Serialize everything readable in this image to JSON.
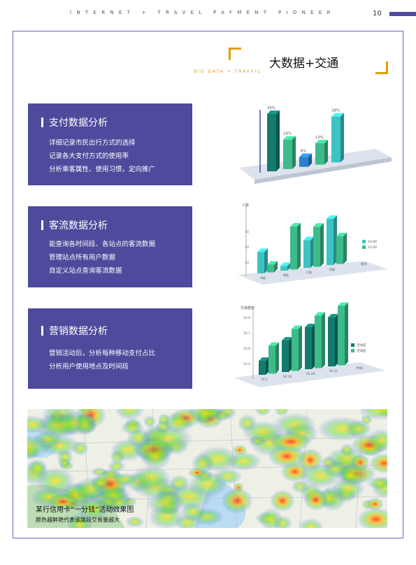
{
  "header": {
    "tagline": "INTERNET + TRAVEL PAYMENT PIONEER",
    "page_number": "10"
  },
  "section": {
    "title": "大数据+交通",
    "subtitle": "BIG DATA + TRAFFIC"
  },
  "colors": {
    "panel": "#4e4a9c",
    "accent": "#e0a100",
    "bar_dark": "#137a6e",
    "bar_green": "#3dbb8a",
    "bar_teal": "#3cc4c4",
    "bar_blue": "#2a7fcf"
  },
  "panels": [
    {
      "title": "支付数据分析",
      "lines": [
        "详细记录市民出行方式的选择",
        "记录各大支付方式的使用率",
        "分析乘客属性、使用习惯，定向推广"
      ]
    },
    {
      "title": "客流数据分析",
      "lines": [
        "能查询各时间段、各站点的客流数据",
        "管理站点所有用户数据",
        "自定义站点查询客流数据"
      ]
    },
    {
      "title": "营销数据分析",
      "lines": [
        "营销活动后，分析每种移动支付占比",
        "分析用户使用地点及时间段"
      ]
    }
  ],
  "chart_data": [
    {
      "type": "bar",
      "categories": [
        "",
        "",
        "",
        "",
        ""
      ],
      "values": [
        35,
        18,
        6,
        13,
        28
      ],
      "data_labels": [
        "35%",
        "18%",
        "6%",
        "13%",
        "28%"
      ]
    },
    {
      "type": "bar",
      "categories": [
        "A站",
        "B站",
        "C站",
        "D站"
      ],
      "series": [
        {
          "name": "10:00",
          "values": [
            14,
            3,
            18,
            30
          ]
        },
        {
          "name": "12:00",
          "values": [
            5,
            28,
            26,
            18
          ]
        }
      ],
      "ylim": [
        0,
        40
      ],
      "y_ticks": [
        "10",
        "20",
        "30"
      ],
      "ylabel": "人数",
      "xlabel": "站点"
    },
    {
      "type": "bar",
      "categories": [
        "10.1",
        "10.10",
        "10.20",
        "10.31"
      ],
      "series": [
        {
          "name": "活动前",
          "values": [
            4,
            9,
            12,
            14
          ]
        },
        {
          "name": "活动后",
          "values": [
            8,
            12,
            15,
            17
          ]
        }
      ],
      "y_ticks": [
        "10.5",
        "10.6",
        "10.7",
        "10.8"
      ],
      "ylabel": "交易额度",
      "xlabel": "时间"
    }
  ],
  "map": {
    "caption_line1": "某行信用卡“一分钱”活动效果图",
    "caption_line2": "颜色越鲜艳代表该路段交易量越大"
  }
}
